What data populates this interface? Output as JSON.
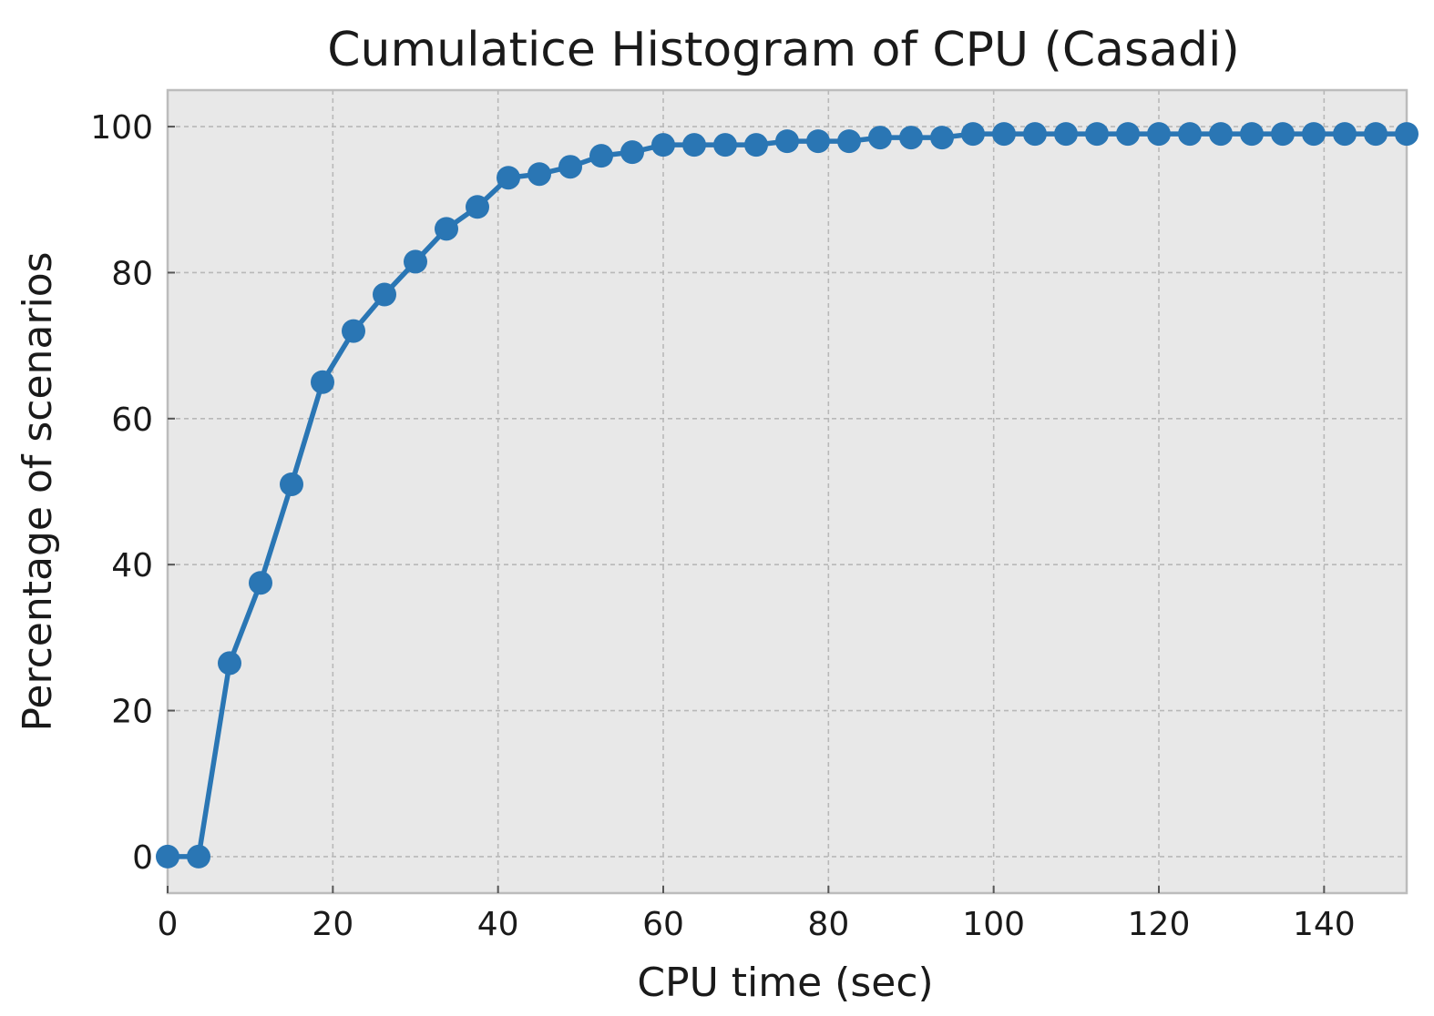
{
  "chart_data": {
    "type": "line",
    "title": "Cumulatice Histogram of CPU (Casadi)",
    "xlabel": "CPU time (sec)",
    "ylabel": "Percentage of scenarios",
    "xlim": [
      0,
      150
    ],
    "ylim": [
      -5,
      105
    ],
    "xticks": [
      0,
      20,
      40,
      60,
      80,
      100,
      120,
      140
    ],
    "yticks": [
      0,
      20,
      40,
      60,
      80,
      100
    ],
    "grid": true,
    "marker": "circle",
    "series_color": "#2a76b4",
    "background_color": "#e8e8e8",
    "series": [
      {
        "x": [
          0,
          3.75,
          7.5,
          11.25,
          15,
          18.75,
          22.5,
          26.25,
          30,
          33.75,
          37.5,
          41.25,
          45,
          48.75,
          52.5,
          56.25,
          60,
          63.75,
          67.5,
          71.25,
          75,
          78.75,
          82.5,
          86.25,
          90,
          93.75,
          97.5,
          101.25,
          105,
          108.75,
          112.5,
          116.25,
          120,
          123.75,
          127.5,
          131.25,
          135,
          138.75,
          142.5,
          146.25,
          150
        ],
        "values": [
          0,
          0,
          26.5,
          37.5,
          51,
          65,
          72,
          77,
          81.5,
          86,
          89,
          93,
          93.5,
          94.5,
          96,
          96.5,
          97.5,
          97.5,
          97.5,
          97.5,
          98,
          98,
          98,
          98.5,
          98.5,
          98.5,
          99,
          99,
          99,
          99,
          99,
          99,
          99,
          99,
          99,
          99,
          99,
          99,
          99,
          99,
          99
        ]
      }
    ]
  }
}
